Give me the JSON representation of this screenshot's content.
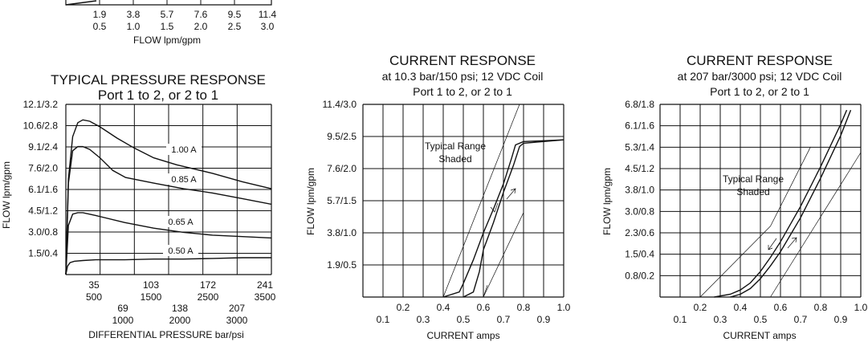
{
  "top_fragment": {
    "row_psi": [
      "1.9",
      "3.8",
      "5.7",
      "7.6",
      "9.5",
      "11.4"
    ],
    "row_gpm": [
      "0.5",
      "1.0",
      "1.5",
      "2.0",
      "2.5",
      "3.0"
    ],
    "xlabel": "FLOW lpm/gpm"
  },
  "chart_data": [
    {
      "type": "line",
      "title": "TYPICAL PRESSURE RESPONSE",
      "subtitle": "Port 1 to 2, or 2 to 1",
      "ylabel": "FLOW lpm/gpm",
      "xlabel": "DIFFERENTIAL PRESSURE bar/psi",
      "y_ticks": [
        "1.5/0.4",
        "3.0/0.8",
        "4.5/1.2",
        "6.1/1.6",
        "7.6/2.0",
        "9.1/2.4",
        "10.6/2.8",
        "12.1/3.2"
      ],
      "x_ticks_upper": [
        [
          "35",
          "500"
        ],
        [
          "103",
          "1500"
        ],
        [
          "172",
          "2500"
        ],
        [
          "241",
          "3500"
        ]
      ],
      "x_ticks_lower": [
        [
          "69",
          "1000"
        ],
        [
          "138",
          "2000"
        ],
        [
          "207",
          "3000"
        ]
      ],
      "xlim": [
        0,
        241
      ],
      "ylim": [
        0,
        12.1
      ],
      "grid": true,
      "series": [
        {
          "name": "1.00 A",
          "x": [
            0,
            3,
            8,
            14,
            20,
            28,
            40,
            60,
            80,
            103,
            130,
            172,
            207,
            241
          ],
          "y": [
            0,
            6.8,
            9.8,
            10.8,
            11.0,
            10.9,
            10.5,
            9.7,
            9.0,
            8.3,
            7.8,
            7.2,
            6.6,
            6.1
          ]
        },
        {
          "name": "0.85 A",
          "x": [
            0,
            3,
            8,
            14,
            20,
            28,
            40,
            55,
            70,
            103,
            138,
            172,
            207,
            241
          ],
          "y": [
            0,
            6.5,
            8.8,
            9.1,
            9.1,
            8.9,
            8.3,
            7.4,
            6.9,
            6.5,
            6.1,
            5.8,
            5.4,
            5.0
          ]
        },
        {
          "name": "0.65 A",
          "x": [
            0,
            3,
            8,
            14,
            20,
            35,
            69,
            103,
            138,
            172,
            207,
            241
          ],
          "y": [
            0,
            3.5,
            4.3,
            4.4,
            4.4,
            4.2,
            3.7,
            3.3,
            3.0,
            2.8,
            2.7,
            2.6
          ]
        },
        {
          "name": "0.50 A",
          "x": [
            0,
            2,
            5,
            10,
            20,
            35,
            69,
            103,
            138,
            172,
            207,
            241
          ],
          "y": [
            0,
            0.6,
            0.85,
            0.95,
            1.0,
            1.05,
            1.05,
            1.1,
            1.1,
            1.15,
            1.2,
            1.2
          ]
        }
      ]
    },
    {
      "type": "line",
      "title": "CURRENT RESPONSE",
      "subtitle_lines": [
        "at 10.3 bar/150 psi; 12 VDC Coil",
        "Port 1 to 2, or 2 to 1"
      ],
      "ylabel": "FLOW lpm/gpm",
      "xlabel": "CURRENT amps",
      "y_ticks": [
        "1.9/0.5",
        "3.8/1.0",
        "5.7/1.5",
        "7.6/2.0",
        "9.5/2.5",
        "11.4/3.0"
      ],
      "x_ticks_lower": [
        "0.1",
        "0.3",
        "0.5",
        "0.7",
        "0.9"
      ],
      "x_ticks_upper": [
        "0.2",
        "0.4",
        "0.6",
        "0.8",
        "1.0"
      ],
      "xlim": [
        0,
        1.0
      ],
      "ylim": [
        0,
        11.4
      ],
      "grid": true,
      "annotation": [
        "Typical Range",
        "Shaded"
      ],
      "series": [
        {
          "name": "increasing",
          "x": [
            0.4,
            0.48,
            0.5,
            0.55,
            0.6,
            0.65,
            0.7,
            0.74,
            0.76,
            0.8,
            0.9,
            1.0
          ],
          "y": [
            0,
            0.3,
            0.8,
            2.2,
            3.8,
            5.2,
            6.7,
            8.2,
            9.0,
            9.2,
            9.25,
            9.3
          ]
        },
        {
          "name": "decreasing",
          "x": [
            0.5,
            0.55,
            0.58,
            0.6,
            0.65,
            0.7,
            0.75,
            0.78,
            0.8,
            0.9,
            1.0
          ],
          "y": [
            0,
            0.3,
            1.5,
            2.8,
            4.4,
            6.2,
            7.8,
            8.9,
            9.1,
            9.2,
            9.3
          ]
        }
      ],
      "range_bounds": [
        {
          "x": [
            0.4,
            0.78
          ],
          "y": [
            0,
            11.4
          ]
        },
        {
          "x": [
            0.6,
            0.8
          ],
          "y": [
            0,
            5.0
          ]
        },
        {
          "x": [
            0.6,
            0.62
          ],
          "y": [
            0,
            0.7
          ]
        }
      ]
    },
    {
      "type": "line",
      "title": "CURRENT RESPONSE",
      "subtitle_lines": [
        "at 207 bar/3000 psi; 12 VDC Coil",
        "Port 1 to 2, or 2 to 1"
      ],
      "ylabel": "FLOW lpm/gpm",
      "xlabel": "CURRENT amps",
      "y_ticks": [
        "0.8/0.2",
        "1.5/0.4",
        "2.3/0.6",
        "3.0/0.8",
        "3.8/1.0",
        "4.5/1.2",
        "5.3/1.4",
        "6.1/1.6",
        "6.8/1.8"
      ],
      "x_ticks_lower": [
        "0.1",
        "0.3",
        "0.5",
        "0.7",
        "0.9"
      ],
      "x_ticks_upper": [
        "0.2",
        "0.4",
        "0.6",
        "0.8",
        "1.0"
      ],
      "xlim": [
        0,
        1.0
      ],
      "ylim": [
        0,
        6.8
      ],
      "grid": true,
      "annotation": [
        "Typical Range",
        "Shaded"
      ],
      "series": [
        {
          "name": "increasing",
          "x": [
            0.27,
            0.35,
            0.4,
            0.45,
            0.5,
            0.55,
            0.6,
            0.7,
            0.8,
            0.9,
            0.93
          ],
          "y": [
            0,
            0.1,
            0.25,
            0.5,
            0.9,
            1.4,
            1.95,
            3.2,
            4.6,
            6.1,
            6.6
          ]
        },
        {
          "name": "decreasing",
          "x": [
            0.35,
            0.4,
            0.45,
            0.5,
            0.55,
            0.6,
            0.65,
            0.7,
            0.8,
            0.9,
            0.95
          ],
          "y": [
            0,
            0.1,
            0.3,
            0.65,
            1.1,
            1.6,
            2.2,
            2.8,
            4.2,
            5.7,
            6.6
          ]
        }
      ],
      "range_bounds": [
        {
          "x": [
            0.2,
            0.55
          ],
          "y": [
            0,
            2.5
          ]
        },
        {
          "x": [
            0.55,
            0.75
          ],
          "y": [
            2.5,
            5.3
          ]
        },
        {
          "x": [
            0.55,
            1.0
          ],
          "y": [
            0,
            5.1
          ]
        }
      ]
    }
  ]
}
